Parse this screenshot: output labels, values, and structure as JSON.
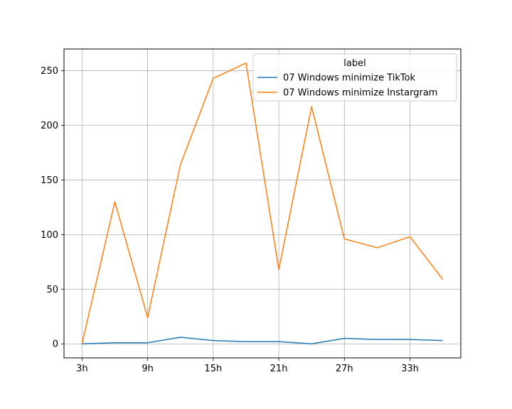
{
  "chart_data": {
    "type": "line",
    "title": "",
    "xlabel": "",
    "ylabel": "",
    "x": [
      3,
      6,
      9,
      12,
      15,
      18,
      21,
      24,
      27,
      30,
      33,
      36
    ],
    "xticks": [
      "3h",
      "9h",
      "15h",
      "21h",
      "27h",
      "33h"
    ],
    "xtick_values": [
      3,
      9,
      15,
      21,
      27,
      33
    ],
    "xlim": [
      1.35,
      37.65
    ],
    "yticks": [
      "0",
      "50",
      "100",
      "150",
      "200",
      "250"
    ],
    "ytick_values": [
      0,
      50,
      100,
      150,
      200,
      250
    ],
    "ylim": [
      -12.85,
      269.85
    ],
    "grid": true,
    "legend": {
      "title": "label",
      "position": "top-right"
    },
    "series": [
      {
        "name": "07 Windows minimize TikTok",
        "color": "#1f77b4",
        "values": [
          0,
          1,
          1,
          6,
          3,
          2,
          2,
          0,
          5,
          4,
          4,
          3
        ]
      },
      {
        "name": "07 Windows minimize Instargram",
        "color": "#ff7f0e",
        "values": [
          0,
          130,
          24,
          164,
          243,
          257,
          68,
          217,
          96,
          88,
          98,
          59
        ]
      }
    ]
  }
}
